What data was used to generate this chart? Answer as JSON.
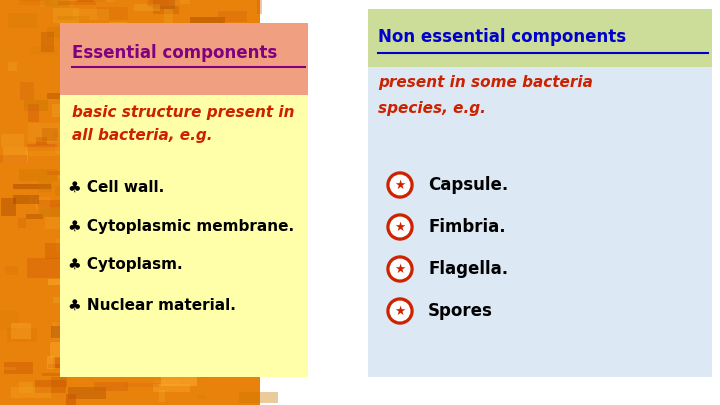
{
  "title_left": "Essential components",
  "title_right": "Non essential components",
  "subtitle_left": "basic structure present in\nall bacteria, e.g.",
  "subtitle_right": "present in some bacteria\nspecies, e.g.",
  "items_left": [
    "♣ Cell wall.",
    "♣ Cytoplasmic membrane.",
    "♣ Cytoplasm.",
    "♣ Nuclear material."
  ],
  "items_right": [
    "Capsule.",
    "Fimbria.",
    "Flagella.",
    "Spores"
  ],
  "title_left_color": "#800080",
  "title_right_color": "#0000cc",
  "subtitle_color": "#cc2200",
  "items_left_color": "#000000",
  "items_right_text_color": "#000000",
  "header_left_bg": "#f0a080",
  "header_right_bg": "#ccdd99",
  "body_left_bg": "#ffffaa",
  "body_right_bg": "#dde8f5",
  "star_color": "#cc2200",
  "autumn_bg": "#e8820a",
  "figsize": [
    7.2,
    4.05
  ],
  "dpi": 100
}
